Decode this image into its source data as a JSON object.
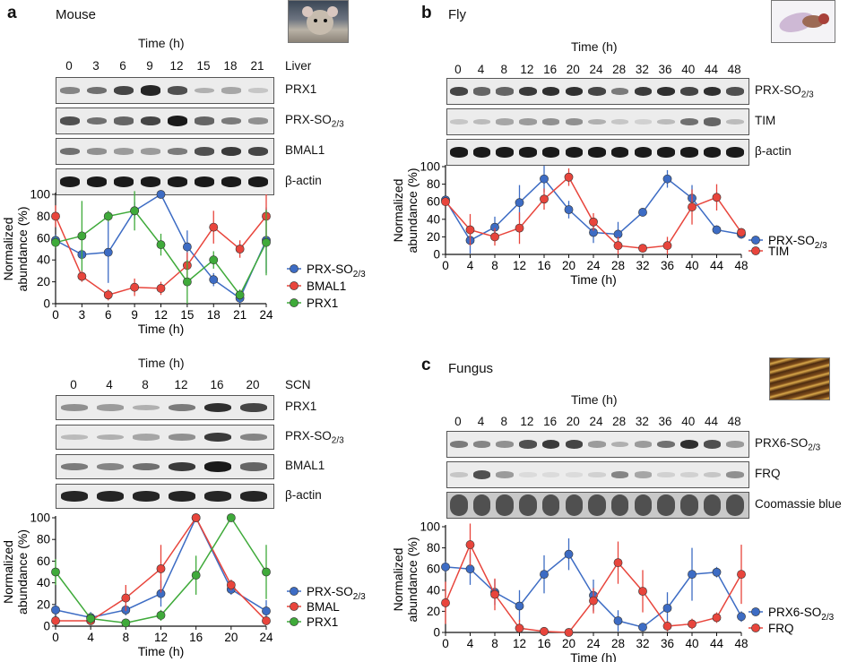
{
  "panels": {
    "a": {
      "letter": "a",
      "organism": "Mouse"
    },
    "b": {
      "letter": "b",
      "organism": "Fly"
    },
    "c": {
      "letter": "c",
      "organism": "Fungus"
    }
  },
  "time_header": "Time (h)",
  "blots": {
    "liver": {
      "tissue": "Liver",
      "times": [
        "0",
        "3",
        "6",
        "9",
        "12",
        "15",
        "18",
        "21"
      ],
      "rows": [
        {
          "label": "PRX1",
          "intensities": [
            0.45,
            0.55,
            0.75,
            0.9,
            0.7,
            0.25,
            0.3,
            0.15
          ]
        },
        {
          "label": "PRX-SO2/3",
          "base": "PRX-SO",
          "sub": "2/3",
          "intensities": [
            0.7,
            0.55,
            0.6,
            0.75,
            0.95,
            0.6,
            0.5,
            0.4
          ]
        },
        {
          "label": "BMAL1",
          "intensities": [
            0.55,
            0.4,
            0.35,
            0.35,
            0.5,
            0.7,
            0.8,
            0.75
          ]
        },
        {
          "label": "β-actin",
          "intensities": [
            0.95,
            0.95,
            0.95,
            0.95,
            0.95,
            0.95,
            0.95,
            0.95
          ]
        }
      ]
    },
    "scn": {
      "tissue": "SCN",
      "times": [
        "0",
        "4",
        "8",
        "12",
        "16",
        "20"
      ],
      "rows": [
        {
          "label": "PRX1",
          "intensities": [
            0.4,
            0.35,
            0.25,
            0.5,
            0.85,
            0.75
          ]
        },
        {
          "label": "PRX-SO2/3",
          "base": "PRX-SO",
          "sub": "2/3",
          "intensities": [
            0.2,
            0.25,
            0.3,
            0.4,
            0.8,
            0.45
          ]
        },
        {
          "label": "BMAL1",
          "intensities": [
            0.5,
            0.45,
            0.55,
            0.8,
            0.95,
            0.6
          ]
        },
        {
          "label": "β-actin",
          "intensities": [
            0.9,
            0.9,
            0.9,
            0.9,
            0.9,
            0.9
          ]
        }
      ]
    },
    "fly": {
      "tissue": "",
      "times": [
        "0",
        "4",
        "8",
        "12",
        "16",
        "20",
        "24",
        "28",
        "32",
        "36",
        "40",
        "44",
        "48"
      ],
      "rows": [
        {
          "label": "PRX-SO2/3",
          "base": "PRX-SO",
          "sub": "2/3",
          "intensities": [
            0.75,
            0.6,
            0.6,
            0.8,
            0.85,
            0.85,
            0.75,
            0.5,
            0.8,
            0.85,
            0.75,
            0.85,
            0.7
          ]
        },
        {
          "label": "TIM",
          "intensities": [
            0.15,
            0.2,
            0.3,
            0.35,
            0.4,
            0.4,
            0.25,
            0.15,
            0.1,
            0.2,
            0.55,
            0.6,
            0.2
          ]
        },
        {
          "label": "β-actin",
          "intensities": [
            0.95,
            0.95,
            0.95,
            0.95,
            0.95,
            0.95,
            0.95,
            0.95,
            0.95,
            0.95,
            0.95,
            0.95,
            0.95
          ]
        }
      ]
    },
    "fungus": {
      "tissue": "",
      "times": [
        "0",
        "4",
        "8",
        "12",
        "16",
        "20",
        "24",
        "28",
        "32",
        "36",
        "40",
        "44",
        "48"
      ],
      "rows": [
        {
          "label": "PRX6-SO2/3",
          "base": "PRX6-SO",
          "sub": "2/3",
          "intensities": [
            0.5,
            0.45,
            0.4,
            0.7,
            0.8,
            0.75,
            0.35,
            0.25,
            0.35,
            0.55,
            0.85,
            0.7,
            0.35
          ]
        },
        {
          "label": "FRQ",
          "intensities": [
            0.15,
            0.7,
            0.35,
            0.05,
            0.05,
            0.05,
            0.1,
            0.45,
            0.3,
            0.1,
            0.1,
            0.15,
            0.4
          ]
        },
        {
          "label": "Coomassie blue",
          "intensities": [
            0.7,
            0.7,
            0.7,
            0.7,
            0.7,
            0.7,
            0.7,
            0.7,
            0.7,
            0.7,
            0.7,
            0.7,
            0.7
          ]
        }
      ]
    }
  },
  "colors": {
    "blue": "#3d6cc4",
    "red": "#e8453c",
    "green": "#3faa3a"
  },
  "chart_data": [
    {
      "id": "liver",
      "type": "line",
      "xlabel": "Time (h)",
      "ylabel": "Normalized abundance (%)",
      "x": [
        0,
        3,
        6,
        9,
        12,
        15,
        18,
        21,
        24
      ],
      "xlim": [
        0,
        24
      ],
      "ylim": [
        0,
        100
      ],
      "xticks": [
        0,
        3,
        6,
        9,
        12,
        15,
        18,
        21,
        24
      ],
      "yticks": [
        0,
        20,
        40,
        60,
        80,
        100
      ],
      "legend": "right",
      "series": [
        {
          "name": "PRX-SO2/3",
          "base": "PRX-SO",
          "sub": "2/3",
          "color": "blue",
          "values": [
            58,
            45,
            47,
            85,
            100,
            52,
            22,
            5,
            58
          ],
          "err": [
            5,
            5,
            28,
            8,
            2,
            15,
            6,
            5,
            30
          ]
        },
        {
          "name": "BMAL1",
          "color": "red",
          "values": [
            80,
            25,
            8,
            15,
            14,
            35,
            70,
            50,
            80
          ],
          "err": [
            10,
            5,
            5,
            8,
            6,
            12,
            15,
            8,
            20
          ]
        },
        {
          "name": "PRX1",
          "color": "green",
          "values": [
            56,
            62,
            80,
            85,
            54,
            20,
            40,
            8,
            56
          ],
          "err": [
            5,
            32,
            5,
            18,
            10,
            20,
            8,
            5,
            30
          ]
        }
      ]
    },
    {
      "id": "scn",
      "type": "line",
      "xlabel": "Time (h)",
      "ylabel": "Normalized abundance (%)",
      "x": [
        0,
        4,
        8,
        12,
        16,
        20,
        24
      ],
      "xlim": [
        0,
        24
      ],
      "ylim": [
        0,
        100
      ],
      "xticks": [
        0,
        4,
        8,
        12,
        16,
        20,
        24
      ],
      "yticks": [
        0,
        20,
        40,
        60,
        80,
        100
      ],
      "legend": "right",
      "series": [
        {
          "name": "PRX-SO2/3",
          "base": "PRX-SO",
          "sub": "2/3",
          "color": "blue",
          "values": [
            15,
            8,
            15,
            30,
            100,
            34,
            14
          ],
          "err": [
            5,
            5,
            5,
            12,
            2,
            5,
            10
          ]
        },
        {
          "name": "BMAL",
          "color": "red",
          "values": [
            5,
            5,
            26,
            53,
            100,
            38,
            5
          ],
          "err": [
            3,
            3,
            12,
            22,
            2,
            5,
            4
          ]
        },
        {
          "name": "PRX1",
          "color": "green",
          "values": [
            50,
            7,
            3,
            10,
            47,
            100,
            50
          ],
          "err": [
            12,
            5,
            3,
            5,
            18,
            2,
            25
          ]
        }
      ]
    },
    {
      "id": "fly",
      "type": "line",
      "xlabel": "Time (h)",
      "ylabel": "Normalized abundance (%)",
      "x": [
        0,
        4,
        8,
        12,
        16,
        20,
        24,
        28,
        32,
        36,
        40,
        44,
        48
      ],
      "xlim": [
        0,
        48
      ],
      "ylim": [
        0,
        100
      ],
      "xticks": [
        0,
        4,
        8,
        12,
        16,
        20,
        24,
        28,
        32,
        36,
        40,
        44,
        48
      ],
      "yticks": [
        0,
        20,
        40,
        60,
        80,
        100
      ],
      "legend": "right",
      "series": [
        {
          "name": "PRX-SO2/3",
          "base": "PRX-SO",
          "sub": "2/3",
          "color": "blue",
          "values": [
            62,
            16,
            31,
            59,
            86,
            51,
            25,
            23,
            48,
            86,
            64,
            28,
            23
          ],
          "err": [
            5,
            15,
            12,
            20,
            15,
            10,
            12,
            14,
            4,
            10,
            15,
            5,
            5
          ]
        },
        {
          "name": "TIM",
          "color": "red",
          "values": [
            60,
            28,
            20,
            30,
            63,
            88,
            37,
            10,
            7,
            10,
            54,
            65,
            25
          ],
          "err": [
            5,
            18,
            10,
            18,
            12,
            10,
            10,
            10,
            3,
            10,
            20,
            15,
            5
          ]
        }
      ]
    },
    {
      "id": "fungus",
      "type": "line",
      "xlabel": "Time (h)",
      "ylabel": "Normalized abundance (%)",
      "x": [
        0,
        4,
        8,
        12,
        16,
        20,
        24,
        28,
        32,
        36,
        40,
        44,
        48
      ],
      "xlim": [
        0,
        48
      ],
      "ylim": [
        0,
        100
      ],
      "xticks": [
        0,
        4,
        8,
        12,
        16,
        20,
        24,
        28,
        32,
        36,
        40,
        44,
        48
      ],
      "yticks": [
        0,
        20,
        40,
        60,
        80,
        100
      ],
      "legend": "right",
      "series": [
        {
          "name": "PRX6-SO2/3",
          "base": "PRX6-SO",
          "sub": "2/3",
          "color": "blue",
          "values": [
            62,
            60,
            38,
            25,
            55,
            74,
            35,
            11,
            5,
            23,
            55,
            57,
            15
          ],
          "err": [
            5,
            15,
            12,
            15,
            18,
            15,
            15,
            10,
            4,
            15,
            25,
            5,
            5
          ]
        },
        {
          "name": "FRQ",
          "color": "red",
          "values": [
            28,
            83,
            36,
            4,
            1,
            0,
            30,
            66,
            39,
            6,
            8,
            14,
            55
          ],
          "err": [
            20,
            20,
            15,
            8,
            2,
            2,
            12,
            20,
            20,
            5,
            5,
            5,
            28
          ]
        }
      ]
    }
  ]
}
